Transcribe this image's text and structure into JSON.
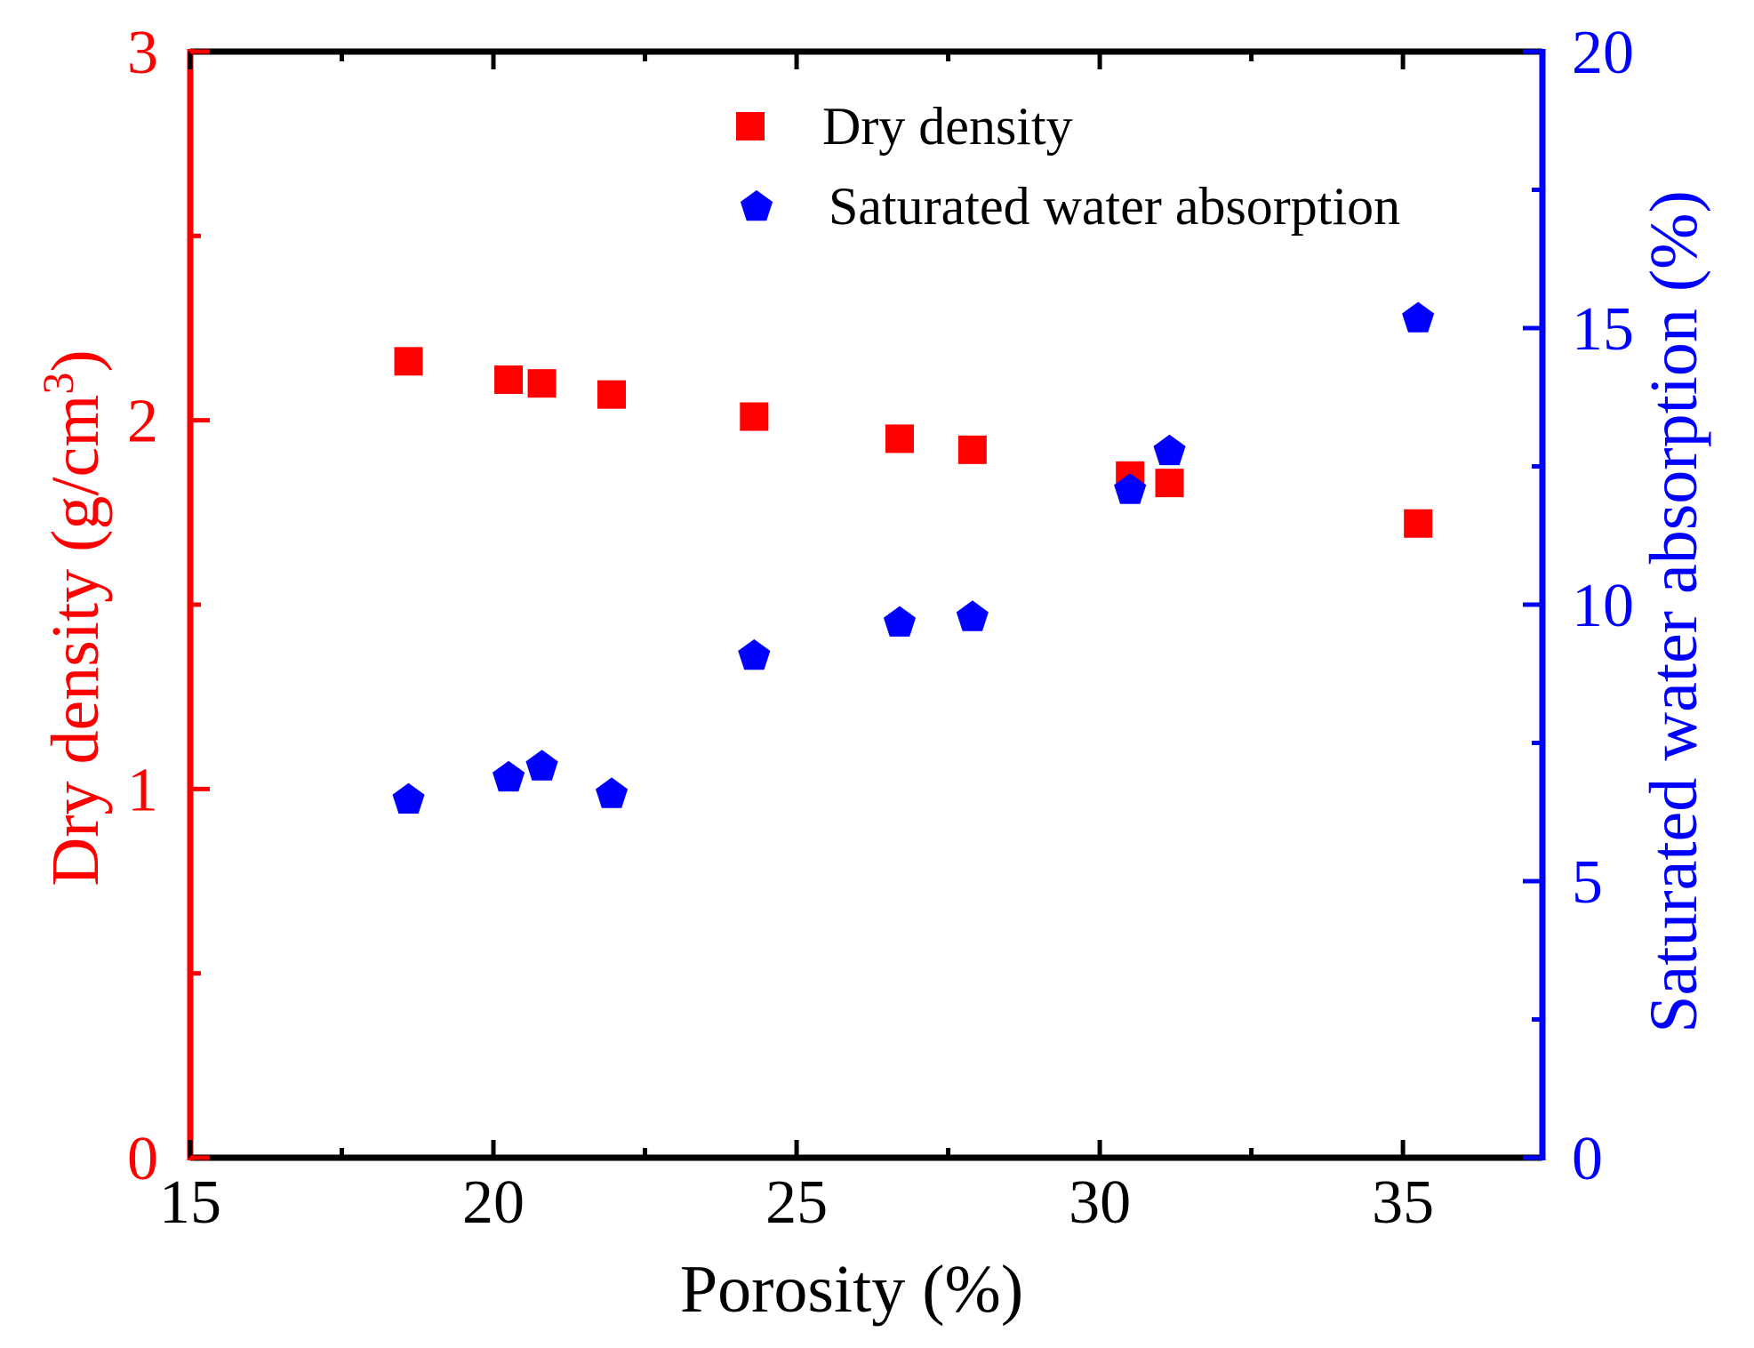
{
  "colors": {
    "left_axis": "#ff0000",
    "right_axis": "#0000ff",
    "frame": "#000000",
    "dry_density": "#ff0000",
    "water_absorption": "#0000ff"
  },
  "chart_data": {
    "type": "scatter",
    "xlabel": "Porosity (%)",
    "ylabel_left": "Dry density (g/cm",
    "ylabel_left_sup": "3",
    "ylabel_left_close": ")",
    "ylabel_right": "Saturated water absorption (%)",
    "xlim": [
      15,
      37.3
    ],
    "ylim_left": [
      0,
      3
    ],
    "ylim_right": [
      0,
      20
    ],
    "x_ticks": [
      15,
      20,
      25,
      30,
      35
    ],
    "x_tick_labels": [
      "15",
      "20",
      "25",
      "30",
      "35"
    ],
    "y_left_ticks": [
      0,
      1,
      2,
      3
    ],
    "y_left_tick_labels": [
      "0",
      "1",
      "2",
      "3"
    ],
    "y_right_ticks": [
      0,
      5,
      10,
      15,
      20
    ],
    "y_right_tick_labels": [
      "0",
      "5",
      "10",
      "15",
      "20"
    ],
    "legend_position": "top-right",
    "series": [
      {
        "name": "Dry density",
        "axis": "left",
        "marker": "square",
        "x": [
          18.6,
          20.25,
          20.8,
          21.95,
          24.3,
          26.7,
          27.9,
          30.5,
          31.15,
          35.25
        ],
        "y": [
          2.16,
          2.11,
          2.1,
          2.07,
          2.01,
          1.95,
          1.92,
          1.85,
          1.83,
          1.72
        ]
      },
      {
        "name": "Saturated water absorption",
        "axis": "right",
        "marker": "pentagon",
        "x": [
          18.6,
          20.25,
          20.8,
          21.95,
          24.3,
          26.7,
          27.9,
          30.5,
          31.15,
          35.25
        ],
        "y": [
          6.5,
          6.9,
          7.1,
          6.6,
          9.1,
          9.7,
          9.8,
          12.1,
          12.8,
          15.2
        ]
      }
    ]
  }
}
